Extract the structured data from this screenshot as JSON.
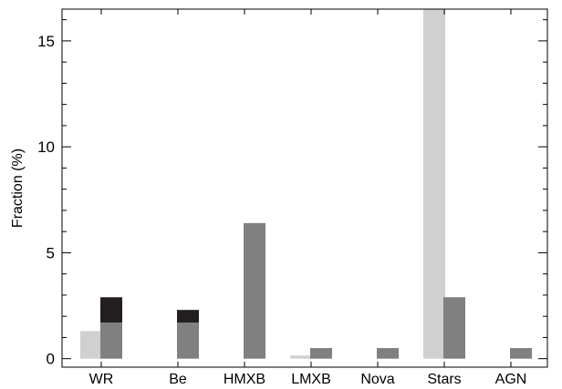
{
  "chart_data": {
    "type": "bar",
    "stacked_segments": true,
    "title": "",
    "xlabel": "",
    "ylabel": "Fraction (%)",
    "ylim": [
      -0.4,
      16.5
    ],
    "yticks": [
      0,
      5,
      10,
      15
    ],
    "grid": false,
    "legend": "none",
    "categories": [
      "WR",
      "Be",
      "HMXB",
      "LMXB",
      "Nova",
      "Stars",
      "AGN"
    ],
    "series": [
      {
        "color": "#d0d0d0",
        "values": [
          1.3,
          0,
          0,
          0.15,
          0,
          16.5,
          0
        ]
      },
      {
        "color": "#808080",
        "values": [
          1.7,
          1.7,
          6.4,
          0.5,
          0.5,
          2.9,
          0.5
        ]
      },
      {
        "color": "#231f20",
        "stack_on_previous": true,
        "values": [
          1.2,
          0.6,
          0,
          0,
          0,
          0,
          0
        ]
      }
    ]
  }
}
